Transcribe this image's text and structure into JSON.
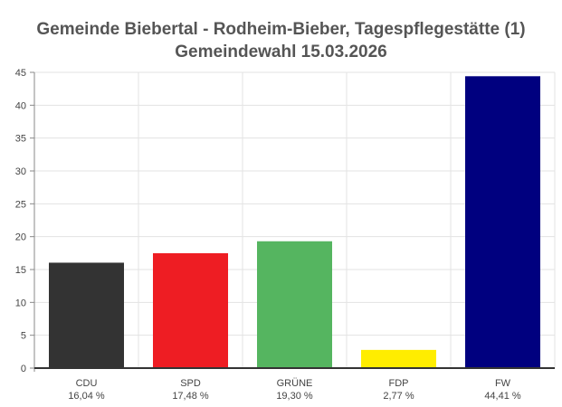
{
  "chart_data": {
    "type": "bar",
    "title": "Gemeinde Biebertal - Rodheim-Bieber, Tagespflegestätte (1)",
    "subtitle": "Gemeindewahl 15.03.2026",
    "categories": [
      "CDU",
      "SPD",
      "GRÜNE",
      "FDP",
      "FW"
    ],
    "value_labels": [
      "16,04 %",
      "17,48 %",
      "19,30 %",
      "2,77 %",
      "44,41 %"
    ],
    "values": [
      16.04,
      17.48,
      19.3,
      2.77,
      44.41
    ],
    "colors": [
      "#333333",
      "#ee1d23",
      "#55b560",
      "#ffed00",
      "#00007f"
    ],
    "ylim": [
      0,
      45
    ],
    "yticks": [
      0,
      5,
      10,
      15,
      20,
      25,
      30,
      35,
      40,
      45
    ],
    "grid": true,
    "xlabel": "",
    "ylabel": ""
  }
}
